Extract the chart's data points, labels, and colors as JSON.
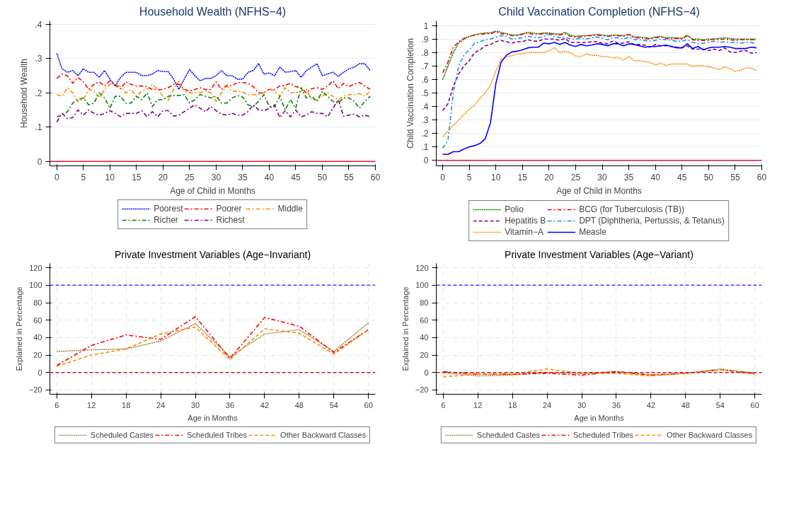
{
  "chart_data": [
    {
      "type": "line",
      "title": "Household Wealth (NFHS−4)",
      "xlabel": "Age of Child in Months",
      "ylabel": "Household Wealth",
      "x": [
        0,
        1,
        2,
        3,
        4,
        5,
        6,
        7,
        8,
        9,
        10,
        11,
        12,
        13,
        14,
        15,
        16,
        17,
        18,
        19,
        20,
        21,
        22,
        23,
        24,
        25,
        26,
        27,
        28,
        29,
        30,
        31,
        32,
        33,
        34,
        35,
        36,
        37,
        38,
        39,
        40,
        41,
        42,
        43,
        44,
        45,
        46,
        47,
        48,
        49,
        50,
        51,
        52,
        53,
        54,
        55,
        56,
        57,
        58,
        59
      ],
      "series": [
        {
          "name": "Poorest",
          "color": "#0000ff",
          "line_style": "dotted",
          "values": [
            0.315,
            0.27,
            0.26,
            0.265,
            0.25,
            0.27,
            0.26,
            0.26,
            0.245,
            0.265,
            0.24,
            0.22,
            0.245,
            0.26,
            0.26,
            0.26,
            0.25,
            0.25,
            0.255,
            0.265,
            0.262,
            0.262,
            0.24,
            0.21,
            0.24,
            0.268,
            0.25,
            0.235,
            0.242,
            0.242,
            0.25,
            0.265,
            0.25,
            0.25,
            0.24,
            0.24,
            0.26,
            0.265,
            0.285,
            0.255,
            0.258,
            0.25,
            0.275,
            0.26,
            0.262,
            0.265,
            0.245,
            0.265,
            0.275,
            0.285,
            0.25,
            0.255,
            0.26,
            0.248,
            0.26,
            0.27,
            0.275,
            0.285,
            0.285,
            0.265
          ]
        },
        {
          "name": "Poorer",
          "color": "#ff0000",
          "line_style": "dashdot",
          "values": [
            0.242,
            0.255,
            0.25,
            0.228,
            0.245,
            0.232,
            0.21,
            0.225,
            0.232,
            0.22,
            0.235,
            0.222,
            0.212,
            0.232,
            0.225,
            0.22,
            0.22,
            0.218,
            0.21,
            0.21,
            0.21,
            0.215,
            0.225,
            0.225,
            0.21,
            0.205,
            0.21,
            0.215,
            0.21,
            0.21,
            0.232,
            0.21,
            0.222,
            0.22,
            0.23,
            0.23,
            0.228,
            0.218,
            0.2,
            0.2,
            0.21,
            0.21,
            0.22,
            0.222,
            0.228,
            0.218,
            0.215,
            0.2,
            0.212,
            0.215,
            0.21,
            0.22,
            0.235,
            0.212,
            0.228,
            0.218,
            0.225,
            0.23,
            0.22,
            0.21
          ]
        },
        {
          "name": "Middle",
          "color": "#ff8c00",
          "line_style": "dashdot",
          "values": [
            0.195,
            0.19,
            0.215,
            0.2,
            0.175,
            0.18,
            0.21,
            0.205,
            0.185,
            0.21,
            0.225,
            0.225,
            0.218,
            0.2,
            0.21,
            0.19,
            0.205,
            0.21,
            0.225,
            0.21,
            0.19,
            0.178,
            0.21,
            0.235,
            0.205,
            0.2,
            0.2,
            0.2,
            0.205,
            0.2,
            0.175,
            0.2,
            0.22,
            0.205,
            0.205,
            0.202,
            0.195,
            0.195,
            0.195,
            0.2,
            0.212,
            0.205,
            0.19,
            0.215,
            0.2,
            0.2,
            0.205,
            0.21,
            0.18,
            0.18,
            0.19,
            0.2,
            0.19,
            0.18,
            0.19,
            0.195,
            0.195,
            0.198,
            0.19,
            0.205
          ]
        },
        {
          "name": "Richer",
          "color": "#008000",
          "line_style": "dashdot",
          "values": [
            0.13,
            0.135,
            0.145,
            0.17,
            0.18,
            0.185,
            0.165,
            0.17,
            0.2,
            0.185,
            0.155,
            0.19,
            0.19,
            0.17,
            0.17,
            0.19,
            0.18,
            0.2,
            0.16,
            0.18,
            0.18,
            0.19,
            0.192,
            0.192,
            0.195,
            0.17,
            0.18,
            0.195,
            0.19,
            0.185,
            0.19,
            0.17,
            0.17,
            0.185,
            0.192,
            0.188,
            0.165,
            0.16,
            0.175,
            0.195,
            0.16,
            0.16,
            0.19,
            0.15,
            0.18,
            0.155,
            0.215,
            0.185,
            0.19,
            0.175,
            0.205,
            0.19,
            0.175,
            0.17,
            0.185,
            0.185,
            0.175,
            0.155,
            0.175,
            0.19
          ]
        },
        {
          "name": "Richest",
          "color": "#800080",
          "line_style": "dashdot",
          "values": [
            0.115,
            0.14,
            0.125,
            0.128,
            0.15,
            0.135,
            0.15,
            0.14,
            0.135,
            0.14,
            0.148,
            0.14,
            0.13,
            0.14,
            0.14,
            0.14,
            0.148,
            0.13,
            0.145,
            0.13,
            0.148,
            0.148,
            0.132,
            0.135,
            0.145,
            0.155,
            0.165,
            0.155,
            0.145,
            0.16,
            0.148,
            0.138,
            0.135,
            0.14,
            0.135,
            0.135,
            0.145,
            0.165,
            0.15,
            0.148,
            0.155,
            0.165,
            0.128,
            0.148,
            0.13,
            0.15,
            0.13,
            0.135,
            0.145,
            0.14,
            0.14,
            0.13,
            0.155,
            0.18,
            0.132,
            0.135,
            0.138,
            0.13,
            0.135,
            0.13
          ]
        }
      ],
      "xlim": [
        -1.3,
        60
      ],
      "ylim": [
        -0.013,
        0.41
      ],
      "xticks": [
        0,
        5,
        10,
        15,
        20,
        25,
        30,
        35,
        40,
        45,
        50,
        55,
        60
      ],
      "yticks": [
        0,
        {
          "value": 0.1,
          "label": ".1"
        },
        {
          "value": 0.2,
          "label": ".2"
        },
        {
          "value": 0.3,
          "label": ".3"
        },
        {
          "value": 0.4,
          "label": ".4"
        }
      ],
      "ref_lines": [
        {
          "axis": "y",
          "value": 0,
          "color": "#dc143c",
          "line_style": "solid"
        }
      ],
      "grid": "y",
      "legend": "bottom"
    },
    {
      "type": "line",
      "title": "Child Vaccination Completion (NFHS−4)",
      "xlabel": "Age of Child in Months",
      "ylabel": "Child Vaccination Completion",
      "x": [
        0,
        1,
        2,
        3,
        4,
        5,
        6,
        7,
        8,
        9,
        10,
        11,
        12,
        13,
        14,
        15,
        16,
        17,
        18,
        19,
        20,
        21,
        22,
        23,
        24,
        25,
        26,
        27,
        28,
        29,
        30,
        31,
        32,
        33,
        34,
        35,
        36,
        37,
        38,
        39,
        40,
        41,
        42,
        43,
        44,
        45,
        46,
        47,
        48,
        49,
        50,
        51,
        52,
        53,
        54,
        55,
        56,
        57,
        58,
        59
      ],
      "series": [
        {
          "name": "Polio",
          "color": "#008000",
          "line_style": "dotted",
          "values": [
            0.6,
            0.7,
            0.8,
            0.87,
            0.9,
            0.92,
            0.93,
            0.94,
            0.945,
            0.945,
            0.96,
            0.95,
            0.94,
            0.93,
            0.93,
            0.94,
            0.95,
            0.945,
            0.94,
            0.945,
            0.945,
            0.94,
            0.935,
            0.95,
            0.93,
            0.92,
            0.925,
            0.925,
            0.93,
            0.935,
            0.93,
            0.925,
            0.93,
            0.93,
            0.925,
            0.935,
            0.915,
            0.915,
            0.91,
            0.905,
            0.915,
            0.92,
            0.91,
            0.91,
            0.91,
            0.905,
            0.925,
            0.9,
            0.9,
            0.895,
            0.9,
            0.9,
            0.905,
            0.91,
            0.905,
            0.9,
            0.9,
            0.9,
            0.9,
            0.9
          ]
        },
        {
          "name": "BCG (for Tuberculosis (TB))",
          "color": "#ff0000",
          "line_style": "dashdot",
          "values": [
            0.65,
            0.73,
            0.84,
            0.88,
            0.905,
            0.92,
            0.93,
            0.935,
            0.94,
            0.94,
            0.955,
            0.94,
            0.935,
            0.925,
            0.925,
            0.935,
            0.945,
            0.935,
            0.935,
            0.94,
            0.94,
            0.935,
            0.93,
            0.94,
            0.92,
            0.915,
            0.915,
            0.925,
            0.925,
            0.93,
            0.925,
            0.92,
            0.925,
            0.925,
            0.92,
            0.935,
            0.91,
            0.91,
            0.905,
            0.9,
            0.91,
            0.915,
            0.905,
            0.9,
            0.905,
            0.9,
            0.93,
            0.895,
            0.89,
            0.89,
            0.89,
            0.9,
            0.895,
            0.9,
            0.895,
            0.89,
            0.895,
            0.895,
            0.895,
            0.895
          ]
        },
        {
          "name": "Hepatitis B",
          "color": "#800080",
          "line_style": "dashed",
          "values": [
            0.37,
            0.42,
            0.55,
            0.64,
            0.7,
            0.74,
            0.8,
            0.82,
            0.85,
            0.86,
            0.88,
            0.89,
            0.88,
            0.87,
            0.88,
            0.88,
            0.895,
            0.885,
            0.885,
            0.9,
            0.9,
            0.9,
            0.89,
            0.905,
            0.875,
            0.875,
            0.875,
            0.875,
            0.88,
            0.88,
            0.87,
            0.865,
            0.885,
            0.87,
            0.87,
            0.88,
            0.86,
            0.86,
            0.855,
            0.84,
            0.86,
            0.85,
            0.85,
            0.845,
            0.84,
            0.835,
            0.85,
            0.825,
            0.825,
            0.825,
            0.815,
            0.825,
            0.815,
            0.835,
            0.805,
            0.8,
            0.81,
            0.815,
            0.795,
            0.8
          ]
        },
        {
          "name": "DPT (Diphtheria, Pertussis, & Tetanus)",
          "color": "#1e90ff",
          "line_style": "dashdot",
          "values": [
            0.09,
            0.15,
            0.5,
            0.7,
            0.78,
            0.82,
            0.87,
            0.88,
            0.895,
            0.9,
            0.915,
            0.925,
            0.92,
            0.9,
            0.905,
            0.91,
            0.92,
            0.915,
            0.91,
            0.92,
            0.935,
            0.92,
            0.91,
            0.915,
            0.9,
            0.9,
            0.905,
            0.9,
            0.91,
            0.915,
            0.905,
            0.895,
            0.91,
            0.91,
            0.9,
            0.915,
            0.895,
            0.895,
            0.89,
            0.885,
            0.89,
            0.9,
            0.895,
            0.89,
            0.885,
            0.885,
            0.895,
            0.875,
            0.865,
            0.87,
            0.875,
            0.885,
            0.875,
            0.88,
            0.875,
            0.875,
            0.87,
            0.875,
            0.875,
            0.865
          ]
        },
        {
          "name": "Vitamin−A",
          "color": "#ff8c00",
          "line_style": "dotted",
          "values": [
            0.175,
            0.22,
            0.26,
            0.3,
            0.34,
            0.38,
            0.41,
            0.46,
            0.5,
            0.56,
            0.66,
            0.75,
            0.77,
            0.775,
            0.79,
            0.79,
            0.8,
            0.8,
            0.8,
            0.8,
            0.815,
            0.835,
            0.8,
            0.81,
            0.8,
            0.775,
            0.77,
            0.79,
            0.78,
            0.78,
            0.77,
            0.77,
            0.76,
            0.765,
            0.745,
            0.77,
            0.74,
            0.74,
            0.735,
            0.725,
            0.71,
            0.72,
            0.705,
            0.715,
            0.715,
            0.715,
            0.715,
            0.695,
            0.705,
            0.7,
            0.695,
            0.685,
            0.675,
            0.695,
            0.68,
            0.66,
            0.67,
            0.685,
            0.685,
            0.665
          ]
        },
        {
          "name": "Measle",
          "color": "#0000ff",
          "line_style": "solid",
          "values": [
            0.045,
            0.045,
            0.065,
            0.065,
            0.085,
            0.1,
            0.11,
            0.125,
            0.16,
            0.28,
            0.57,
            0.73,
            0.78,
            0.805,
            0.81,
            0.82,
            0.835,
            0.84,
            0.84,
            0.87,
            0.865,
            0.875,
            0.86,
            0.875,
            0.855,
            0.845,
            0.86,
            0.85,
            0.855,
            0.865,
            0.86,
            0.85,
            0.865,
            0.865,
            0.85,
            0.865,
            0.86,
            0.85,
            0.84,
            0.845,
            0.845,
            0.85,
            0.855,
            0.845,
            0.835,
            0.835,
            0.865,
            0.83,
            0.845,
            0.82,
            0.835,
            0.84,
            0.84,
            0.845,
            0.84,
            0.83,
            0.83,
            0.83,
            0.84,
            0.835
          ]
        }
      ],
      "xlim": [
        -1.2,
        60
      ],
      "ylim": [
        -0.04,
        1.035
      ],
      "xticks": [
        0,
        5,
        10,
        15,
        20,
        25,
        30,
        35,
        40,
        45,
        50,
        55,
        60
      ],
      "yticks": [
        0,
        {
          "value": 0.1,
          "label": ".1"
        },
        {
          "value": 0.2,
          "label": ".2"
        },
        {
          "value": 0.3,
          "label": ".3"
        },
        {
          "value": 0.4,
          "label": ".4"
        },
        {
          "value": 0.5,
          "label": ".5"
        },
        {
          "value": 0.6,
          "label": ".6"
        },
        {
          "value": 0.7,
          "label": ".7"
        },
        {
          "value": 0.8,
          "label": ".8"
        },
        {
          "value": 0.9,
          "label": ".9"
        },
        1
      ],
      "ref_lines": [
        {
          "axis": "y",
          "value": 0,
          "color": "#dc143c",
          "line_style": "solid"
        }
      ],
      "grid": "y",
      "legend": "bottom"
    },
    {
      "type": "line",
      "title": "Private Investment Variables (Age−Invariant)",
      "xlabel": "Age in Months",
      "ylabel": "Explained in Percentage",
      "x": [
        6,
        12,
        18,
        24,
        30,
        36,
        42,
        48,
        54,
        60
      ],
      "series": [
        {
          "name": "Scheduled Castes",
          "color": "#a08c50",
          "line_style": "dotted",
          "values": [
            24,
            26,
            27,
            36,
            56,
            18,
            44,
            49,
            24,
            57
          ]
        },
        {
          "name": "Scheduled Tribes",
          "color": "#ff0000",
          "line_style": "dashdot",
          "values": [
            8,
            31,
            43,
            38,
            64,
            16,
            63,
            53,
            23,
            49
          ]
        },
        {
          "name": "Other Backward Classes",
          "color": "#ff8c00",
          "line_style": "dashed",
          "values": [
            7,
            20,
            27,
            44,
            52,
            15,
            50,
            45,
            21,
            49
          ]
        }
      ],
      "xlim": [
        4.8,
        61.2
      ],
      "ylim": [
        -25,
        125
      ],
      "xticks": [
        6,
        12,
        18,
        24,
        30,
        36,
        42,
        48,
        54,
        60
      ],
      "yticks": [
        {
          "value": -20,
          "label": "−20"
        },
        0,
        20,
        40,
        60,
        80,
        100,
        120
      ],
      "ref_lines": [
        {
          "axis": "y",
          "value": 100,
          "color": "#4040ff",
          "line_style": "dashed"
        },
        {
          "axis": "y",
          "value": 0,
          "color": "#b22222",
          "line_style": "dashed"
        }
      ],
      "grid": true,
      "legend": "bottom"
    },
    {
      "type": "line",
      "title": "Private Investment Variables (Age−Variant)",
      "xlabel": "Age in Months",
      "ylabel": "Explained in Percentage",
      "x": [
        6,
        12,
        18,
        24,
        30,
        36,
        42,
        48,
        54,
        60
      ],
      "series": [
        {
          "name": "Scheduled Castes",
          "color": "#a08c50",
          "line_style": "dotted",
          "values": [
            0,
            -4,
            -3,
            0,
            -1,
            1,
            -3,
            -1,
            4,
            -1
          ]
        },
        {
          "name": "Scheduled Tribes",
          "color": "#ff0000",
          "line_style": "dashdot",
          "values": [
            1,
            -2,
            -2,
            -1,
            -3,
            1,
            -3,
            -1,
            3,
            -1
          ]
        },
        {
          "name": "Other Backward Classes",
          "color": "#ff8c00",
          "line_style": "dashed",
          "values": [
            -5,
            -2,
            -2,
            4,
            -1,
            -1,
            -4,
            -1,
            3,
            -2
          ]
        }
      ],
      "xlim": [
        4.8,
        61.2
      ],
      "ylim": [
        -25,
        125
      ],
      "xticks": [
        6,
        12,
        18,
        24,
        30,
        36,
        42,
        48,
        54,
        60
      ],
      "yticks": [
        {
          "value": -20,
          "label": "−20"
        },
        0,
        20,
        40,
        60,
        80,
        100,
        120
      ],
      "ref_lines": [
        {
          "axis": "y",
          "value": 100,
          "color": "#4040ff",
          "line_style": "dashed"
        },
        {
          "axis": "y",
          "value": 0,
          "color": "#b22222",
          "line_style": "dashed"
        }
      ],
      "grid": true,
      "legend": "bottom"
    }
  ]
}
